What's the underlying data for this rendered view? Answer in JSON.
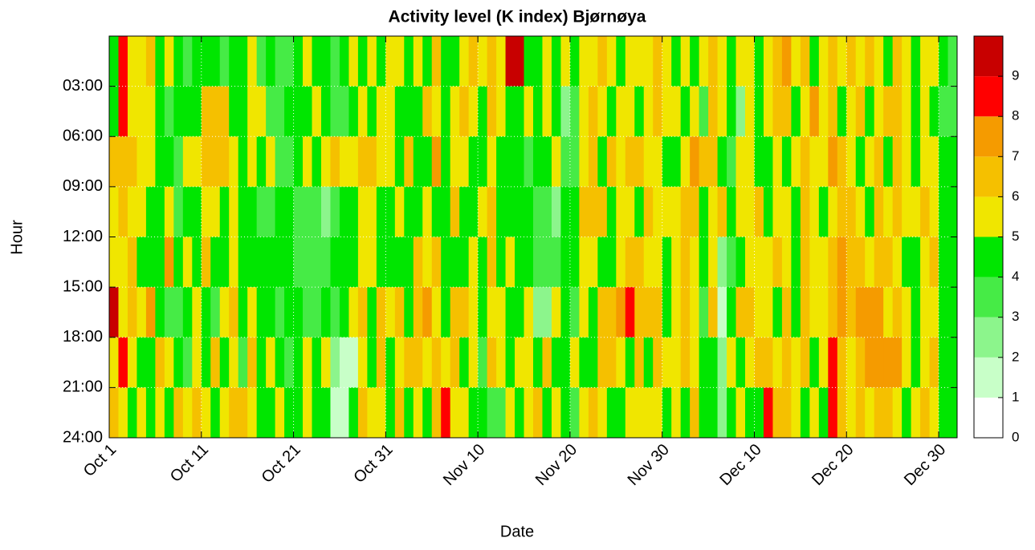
{
  "chart_data": {
    "type": "heatmap",
    "title": "Activity level (K index) Bjørnøya",
    "x_label": "Date",
    "y_label": "Hour",
    "xlim": [
      0,
      92
    ],
    "xticks": [
      {
        "value": 0,
        "label": "Oct 1"
      },
      {
        "value": 10,
        "label": "Oct 11"
      },
      {
        "value": 20,
        "label": "Oct 21"
      },
      {
        "value": 30,
        "label": "Oct 31"
      },
      {
        "value": 40,
        "label": "Nov 10"
      },
      {
        "value": 50,
        "label": "Nov 20"
      },
      {
        "value": 60,
        "label": "Nov 30"
      },
      {
        "value": 70,
        "label": "Dec 10"
      },
      {
        "value": 80,
        "label": "Dec 20"
      },
      {
        "value": 90,
        "label": "Dec 30"
      }
    ],
    "ylim": [
      0,
      24
    ],
    "yticks": [
      {
        "value": 3,
        "label": "03:00"
      },
      {
        "value": 6,
        "label": "06:00"
      },
      {
        "value": 9,
        "label": "09:00"
      },
      {
        "value": 12,
        "label": "12:00"
      },
      {
        "value": 15,
        "label": "15:00"
      },
      {
        "value": 18,
        "label": "18:00"
      },
      {
        "value": 21,
        "label": "21:00"
      },
      {
        "value": 24,
        "label": "24:00"
      }
    ],
    "zlim": [
      0,
      10
    ],
    "zticks": [
      0,
      1,
      2,
      3,
      4,
      5,
      6,
      7,
      8,
      9
    ],
    "colors": [
      "#ffffff",
      "#c8ffc8",
      "#8cf58c",
      "#46eb46",
      "#00e600",
      "#f0e600",
      "#f5c000",
      "#f59b00",
      "#ff0000",
      "#c80000"
    ],
    "grid": true,
    "values": [
      [
        4,
        8,
        5,
        5,
        6,
        4,
        5,
        4,
        3,
        4,
        4,
        4,
        3,
        4,
        4,
        5,
        3,
        4,
        3,
        3,
        4,
        5,
        4,
        4,
        3,
        4,
        5,
        4,
        5,
        4,
        5,
        5,
        4,
        5,
        4,
        6,
        4,
        4,
        5,
        6,
        5,
        6,
        5,
        9,
        9,
        4,
        4,
        5,
        4,
        5,
        4,
        5,
        5,
        6,
        5,
        4,
        5,
        5,
        5,
        6,
        5,
        4,
        5,
        4,
        5,
        6,
        5,
        4,
        5,
        5,
        4,
        5,
        6,
        7,
        5,
        6,
        4,
        5,
        6,
        5,
        6,
        5,
        6,
        5,
        4,
        6,
        5,
        4,
        5,
        5,
        4,
        3
      ],
      [
        4,
        8,
        5,
        5,
        5,
        4,
        3,
        4,
        4,
        4,
        6,
        6,
        6,
        4,
        4,
        5,
        5,
        3,
        3,
        4,
        4,
        4,
        5,
        4,
        3,
        3,
        4,
        5,
        4,
        5,
        5,
        4,
        4,
        4,
        6,
        5,
        4,
        5,
        6,
        5,
        4,
        6,
        5,
        4,
        4,
        5,
        4,
        5,
        4,
        2,
        3,
        5,
        6,
        5,
        4,
        5,
        5,
        4,
        5,
        6,
        5,
        5,
        4,
        5,
        3,
        6,
        5,
        4,
        2,
        5,
        4,
        5,
        6,
        6,
        4,
        5,
        7,
        5,
        6,
        4,
        5,
        6,
        4,
        5,
        6,
        6,
        5,
        4,
        5,
        4,
        3,
        3
      ],
      [
        6,
        6,
        6,
        5,
        5,
        4,
        4,
        3,
        5,
        5,
        6,
        6,
        6,
        5,
        4,
        5,
        4,
        5,
        3,
        3,
        4,
        5,
        4,
        5,
        6,
        5,
        5,
        6,
        6,
        5,
        5,
        4,
        6,
        4,
        4,
        7,
        4,
        5,
        5,
        4,
        4,
        5,
        4,
        4,
        4,
        3,
        4,
        4,
        5,
        3,
        3,
        5,
        6,
        4,
        6,
        5,
        6,
        6,
        5,
        5,
        4,
        4,
        5,
        7,
        6,
        6,
        4,
        3,
        5,
        5,
        4,
        4,
        5,
        4,
        5,
        6,
        5,
        5,
        7,
        6,
        5,
        4,
        5,
        6,
        4,
        6,
        5,
        4,
        5,
        5,
        4,
        4
      ],
      [
        5,
        6,
        5,
        5,
        4,
        4,
        5,
        3,
        4,
        4,
        5,
        5,
        4,
        5,
        4,
        4,
        3,
        3,
        4,
        4,
        3,
        3,
        3,
        2,
        3,
        4,
        4,
        5,
        5,
        4,
        4,
        5,
        4,
        4,
        5,
        4,
        4,
        6,
        4,
        4,
        5,
        6,
        4,
        4,
        4,
        4,
        3,
        3,
        2,
        4,
        4,
        6,
        6,
        6,
        4,
        5,
        5,
        4,
        6,
        5,
        5,
        5,
        6,
        6,
        4,
        5,
        6,
        4,
        5,
        5,
        6,
        4,
        5,
        5,
        4,
        6,
        5,
        4,
        5,
        6,
        6,
        5,
        4,
        6,
        5,
        6,
        5,
        5,
        6,
        5,
        4,
        4
      ],
      [
        5,
        5,
        6,
        4,
        4,
        4,
        7,
        4,
        5,
        4,
        6,
        4,
        4,
        5,
        4,
        4,
        4,
        4,
        4,
        4,
        3,
        3,
        3,
        3,
        4,
        4,
        4,
        5,
        5,
        4,
        4,
        4,
        4,
        6,
        5,
        6,
        4,
        4,
        4,
        5,
        4,
        6,
        4,
        5,
        4,
        4,
        3,
        3,
        3,
        4,
        4,
        5,
        5,
        4,
        4,
        5,
        6,
        6,
        5,
        5,
        4,
        5,
        6,
        5,
        4,
        5,
        2,
        3,
        4,
        5,
        5,
        5,
        6,
        5,
        4,
        6,
        5,
        5,
        6,
        7,
        6,
        6,
        5,
        6,
        6,
        5,
        4,
        4,
        5,
        6,
        4,
        4
      ],
      [
        9,
        5,
        6,
        5,
        7,
        4,
        3,
        3,
        4,
        5,
        4,
        3,
        5,
        6,
        4,
        5,
        4,
        4,
        3,
        4,
        4,
        3,
        3,
        4,
        3,
        4,
        5,
        6,
        4,
        6,
        5,
        6,
        4,
        6,
        7,
        5,
        4,
        6,
        6,
        5,
        4,
        5,
        5,
        4,
        4,
        5,
        2,
        2,
        5,
        4,
        3,
        5,
        4,
        6,
        6,
        7,
        8,
        6,
        6,
        6,
        4,
        5,
        6,
        5,
        3,
        6,
        1,
        4,
        6,
        6,
        5,
        5,
        4,
        6,
        4,
        6,
        5,
        5,
        6,
        7,
        6,
        7,
        7,
        7,
        5,
        6,
        5,
        4,
        5,
        5,
        4,
        4
      ],
      [
        5,
        8,
        5,
        4,
        4,
        6,
        5,
        4,
        3,
        5,
        4,
        6,
        4,
        5,
        3,
        6,
        4,
        5,
        4,
        3,
        4,
        5,
        4,
        5,
        2,
        1,
        1,
        5,
        4,
        6,
        4,
        5,
        6,
        6,
        5,
        6,
        5,
        6,
        4,
        5,
        3,
        6,
        5,
        4,
        5,
        5,
        4,
        6,
        4,
        4,
        5,
        4,
        4,
        6,
        6,
        5,
        4,
        6,
        4,
        6,
        5,
        5,
        6,
        5,
        4,
        4,
        2,
        5,
        4,
        5,
        6,
        6,
        5,
        6,
        5,
        6,
        4,
        5,
        8,
        6,
        5,
        6,
        7,
        7,
        7,
        7,
        5,
        4,
        5,
        6,
        4,
        4
      ],
      [
        6,
        5,
        4,
        5,
        4,
        5,
        4,
        6,
        5,
        6,
        5,
        4,
        5,
        6,
        6,
        5,
        4,
        4,
        5,
        4,
        4,
        5,
        4,
        4,
        1,
        1,
        4,
        6,
        5,
        5,
        4,
        6,
        4,
        5,
        4,
        6,
        8,
        5,
        5,
        4,
        4,
        3,
        3,
        5,
        4,
        5,
        6,
        4,
        5,
        4,
        3,
        5,
        6,
        5,
        4,
        4,
        5,
        5,
        5,
        5,
        4,
        5,
        4,
        6,
        4,
        4,
        2,
        4,
        5,
        4,
        4,
        8,
        6,
        6,
        5,
        4,
        5,
        4,
        8,
        6,
        5,
        6,
        5,
        6,
        6,
        5,
        4,
        5,
        6,
        5,
        4,
        4
      ]
    ]
  }
}
